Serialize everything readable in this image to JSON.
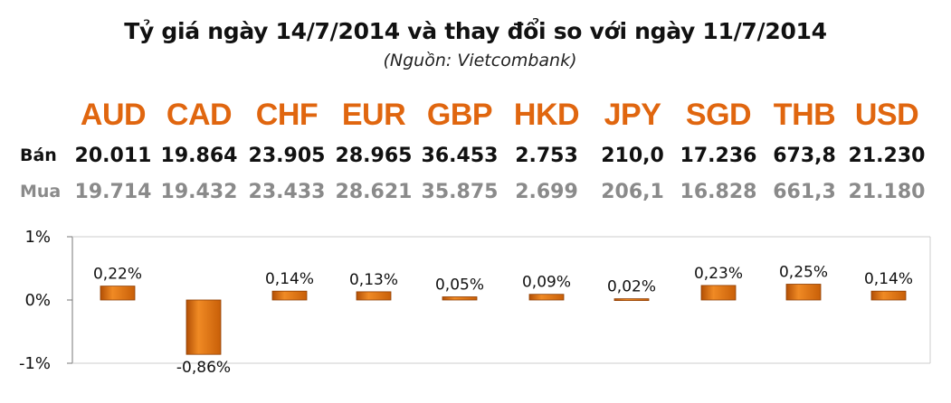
{
  "title": "Tỷ giá ngày 14/7/2014 và thay đổi so với ngày 11/7/2014",
  "subtitle": "(Nguồn: Vietcombank)",
  "row_labels": {
    "sell": "Bán",
    "buy": "Mua"
  },
  "currencies": [
    "AUD",
    "CAD",
    "CHF",
    "EUR",
    "GBP",
    "HKD",
    "JPY",
    "SGD",
    "THB",
    "USD"
  ],
  "sell": [
    "20.011",
    "19.864",
    "23.905",
    "28.965",
    "36.453",
    "2.753",
    "210,0",
    "17.236",
    "673,8",
    "21.230"
  ],
  "buy": [
    "19.714",
    "19.432",
    "23.433",
    "28.621",
    "35.875",
    "2.699",
    "206,1",
    "16.828",
    "661,3",
    "21.180"
  ],
  "colors": {
    "accent": "#e0660f",
    "bar": "#e8730c",
    "bar_dark": "#a84a05",
    "buy_text": "#8a8a8a"
  },
  "chart_data": {
    "type": "bar",
    "categories": [
      "AUD",
      "CAD",
      "CHF",
      "EUR",
      "GBP",
      "HKD",
      "JPY",
      "SGD",
      "THB",
      "USD"
    ],
    "values": [
      0.22,
      -0.86,
      0.14,
      0.13,
      0.05,
      0.09,
      0.02,
      0.23,
      0.25,
      0.14
    ],
    "data_labels": [
      "0,22%",
      "-0,86%",
      "0,14%",
      "0,13%",
      "0,05%",
      "0,09%",
      "0,02%",
      "0,23%",
      "0,25%",
      "0,14%"
    ],
    "y_ticks": [
      "1%",
      "0%",
      "-1%"
    ],
    "y_tick_values": [
      1,
      0,
      -1
    ],
    "ylim": [
      -1,
      1
    ],
    "title": "",
    "xlabel": "",
    "ylabel": "",
    "grid": false,
    "legend": "none"
  }
}
